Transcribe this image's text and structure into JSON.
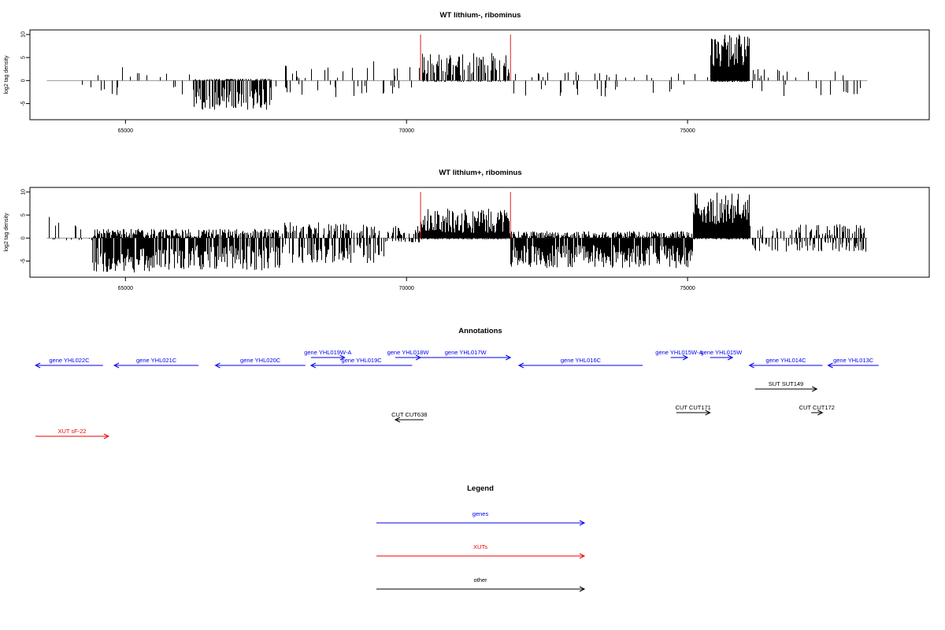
{
  "chart_data": [
    {
      "type": "bar",
      "title": "WT lithium-, ribominus",
      "xlabel": "",
      "ylabel": "log2 tag density",
      "xlim": [
        63300,
        79300
      ],
      "ylim": [
        -8.5,
        11
      ],
      "yticks": [
        10,
        5,
        0,
        -5
      ],
      "xticks": [
        65000,
        70000,
        75000
      ],
      "xtick_labels": [
        "65000",
        "70000",
        "75000"
      ],
      "markers": [
        70250,
        71850
      ],
      "marker_color": "#dd2020",
      "bar_color": "#000000",
      "segments": [
        {
          "from": 63600,
          "to": 64000,
          "density": 0.02,
          "pos": [
            0.5,
            1.2
          ],
          "neg": [
            1,
            3.5
          ]
        },
        {
          "from": 64200,
          "to": 64500,
          "density": 0.02,
          "pos": [
            0.5,
            2.5
          ],
          "neg": [
            0.5,
            2
          ]
        },
        {
          "from": 64500,
          "to": 65300,
          "density": 0.12,
          "pos": [
            0.5,
            3.2
          ],
          "neg": [
            1,
            4.5
          ]
        },
        {
          "from": 65300,
          "to": 66200,
          "density": 0.05,
          "pos": [
            0.5,
            1.5
          ],
          "neg": [
            1,
            4
          ]
        },
        {
          "from": 66200,
          "to": 67600,
          "density": 0.7,
          "pos": [
            0,
            0.4
          ],
          "neg": [
            1.5,
            6.5
          ]
        },
        {
          "from": 67600,
          "to": 69300,
          "density": 0.08,
          "pos": [
            0.5,
            3.5
          ],
          "neg": [
            0.5,
            4
          ]
        },
        {
          "from": 69300,
          "to": 70250,
          "density": 0.1,
          "pos": [
            0.5,
            4.5
          ],
          "neg": [
            0.5,
            3
          ]
        },
        {
          "from": 70250,
          "to": 71850,
          "density": 0.6,
          "pos": [
            1,
            6
          ],
          "neg": [
            0,
            0.3
          ]
        },
        {
          "from": 71850,
          "to": 75400,
          "density": 0.08,
          "pos": [
            0.5,
            2
          ],
          "neg": [
            0.5,
            3.5
          ]
        },
        {
          "from": 75400,
          "to": 76100,
          "density": 1.4,
          "pos": [
            3,
            10
          ],
          "neg": [
            0,
            0.3
          ]
        },
        {
          "from": 76100,
          "to": 78200,
          "density": 0.1,
          "pos": [
            0.5,
            2.5
          ],
          "neg": [
            0.5,
            3.5
          ]
        }
      ]
    },
    {
      "type": "bar",
      "title": "WT lithium+, ribominus",
      "xlabel": "",
      "ylabel": "log2 tag density",
      "xlim": [
        63300,
        79300
      ],
      "ylim": [
        -8.5,
        11
      ],
      "yticks": [
        10,
        5,
        0,
        -5
      ],
      "xticks": [
        65000,
        70000,
        75000
      ],
      "xtick_labels": [
        "65000",
        "70000",
        "75000"
      ],
      "markers": [
        70250,
        71850
      ],
      "marker_color": "#dd2020",
      "bar_color": "#000000",
      "segments": [
        {
          "from": 63600,
          "to": 64400,
          "density": 0.15,
          "pos": [
            0.5,
            5
          ],
          "neg": [
            0,
            0.5
          ]
        },
        {
          "from": 64400,
          "to": 66000,
          "density": 0.9,
          "pos": [
            0,
            2
          ],
          "neg": [
            2,
            7.5
          ]
        },
        {
          "from": 66000,
          "to": 67800,
          "density": 0.8,
          "pos": [
            0,
            2
          ],
          "neg": [
            1.5,
            7
          ]
        },
        {
          "from": 67800,
          "to": 69600,
          "density": 0.5,
          "pos": [
            0.5,
            3.5
          ],
          "neg": [
            1,
            5.5
          ]
        },
        {
          "from": 69600,
          "to": 70250,
          "density": 0.5,
          "pos": [
            0.5,
            3
          ],
          "neg": [
            0,
            1
          ]
        },
        {
          "from": 70250,
          "to": 71850,
          "density": 1.2,
          "pos": [
            1,
            6.5
          ],
          "neg": [
            0,
            0.3
          ]
        },
        {
          "from": 71850,
          "to": 75100,
          "density": 0.9,
          "pos": [
            0,
            1.5
          ],
          "neg": [
            1.5,
            6.5
          ]
        },
        {
          "from": 75100,
          "to": 76100,
          "density": 1.4,
          "pos": [
            3,
            10
          ],
          "neg": [
            0,
            0.3
          ]
        },
        {
          "from": 76100,
          "to": 78200,
          "density": 0.35,
          "pos": [
            0.5,
            3
          ],
          "neg": [
            0.5,
            3
          ]
        }
      ]
    }
  ],
  "annotations": {
    "title": "Annotations",
    "items": [
      {
        "label": "gene YHL022C",
        "start": 63400,
        "end": 64600,
        "strand": "-",
        "row": 0,
        "kind": "gene"
      },
      {
        "label": "gene YHL021C",
        "start": 64800,
        "end": 66300,
        "strand": "-",
        "row": 0,
        "kind": "gene"
      },
      {
        "label": "gene YHL020C",
        "start": 66600,
        "end": 68200,
        "strand": "-",
        "row": 0,
        "kind": "gene"
      },
      {
        "label": "gene YHL019W-A",
        "start": 68300,
        "end": 68900,
        "strand": "+",
        "row": -1,
        "kind": "gene"
      },
      {
        "label": "gene YHL019C",
        "start": 68300,
        "end": 70100,
        "strand": "-",
        "row": 0,
        "kind": "gene"
      },
      {
        "label": "gene YHL018W",
        "start": 69800,
        "end": 70250,
        "strand": "+",
        "row": -1,
        "kind": "gene"
      },
      {
        "label": "gene YHL017W",
        "start": 70250,
        "end": 71850,
        "strand": "+",
        "row": -1,
        "kind": "gene"
      },
      {
        "label": "gene YHL016C",
        "start": 72000,
        "end": 74200,
        "strand": "-",
        "row": 0,
        "kind": "gene"
      },
      {
        "label": "gene YHL015W-A",
        "start": 74700,
        "end": 75000,
        "strand": "+",
        "row": -1,
        "kind": "gene"
      },
      {
        "label": "gene YHL015W",
        "start": 75400,
        "end": 75800,
        "strand": "+",
        "row": -1,
        "kind": "gene"
      },
      {
        "label": "gene YHL014C",
        "start": 76100,
        "end": 77400,
        "strand": "-",
        "row": 0,
        "kind": "gene"
      },
      {
        "label": "gene YHL013C",
        "start": 77500,
        "end": 78400,
        "strand": "-",
        "row": 0,
        "kind": "gene"
      },
      {
        "label": "SUT SUT149",
        "start": 76200,
        "end": 77300,
        "strand": "+",
        "row": 1,
        "kind": "other"
      },
      {
        "label": "CUT CUT171",
        "start": 74800,
        "end": 75400,
        "strand": "+",
        "row": 2,
        "kind": "other"
      },
      {
        "label": "CUT CUT172",
        "start": 77200,
        "end": 77400,
        "strand": "+",
        "row": 2,
        "kind": "other"
      },
      {
        "label": "CUT CUT638",
        "start": 69800,
        "end": 70300,
        "strand": "-",
        "row": 2.3,
        "kind": "other"
      },
      {
        "label": "XUT sF-22",
        "start": 63400,
        "end": 64700,
        "strand": "+",
        "row": 3,
        "kind": "xut"
      }
    ]
  },
  "legend": {
    "title": "Legend",
    "items": [
      {
        "label": "genes",
        "kind": "gene"
      },
      {
        "label": "XUTs",
        "kind": "xut"
      },
      {
        "label": "other",
        "kind": "other"
      }
    ]
  },
  "colors": {
    "gene": "#0000ee",
    "xut": "#ee0000",
    "other": "#000000",
    "axis": "#000000",
    "baseline": "#888888"
  }
}
